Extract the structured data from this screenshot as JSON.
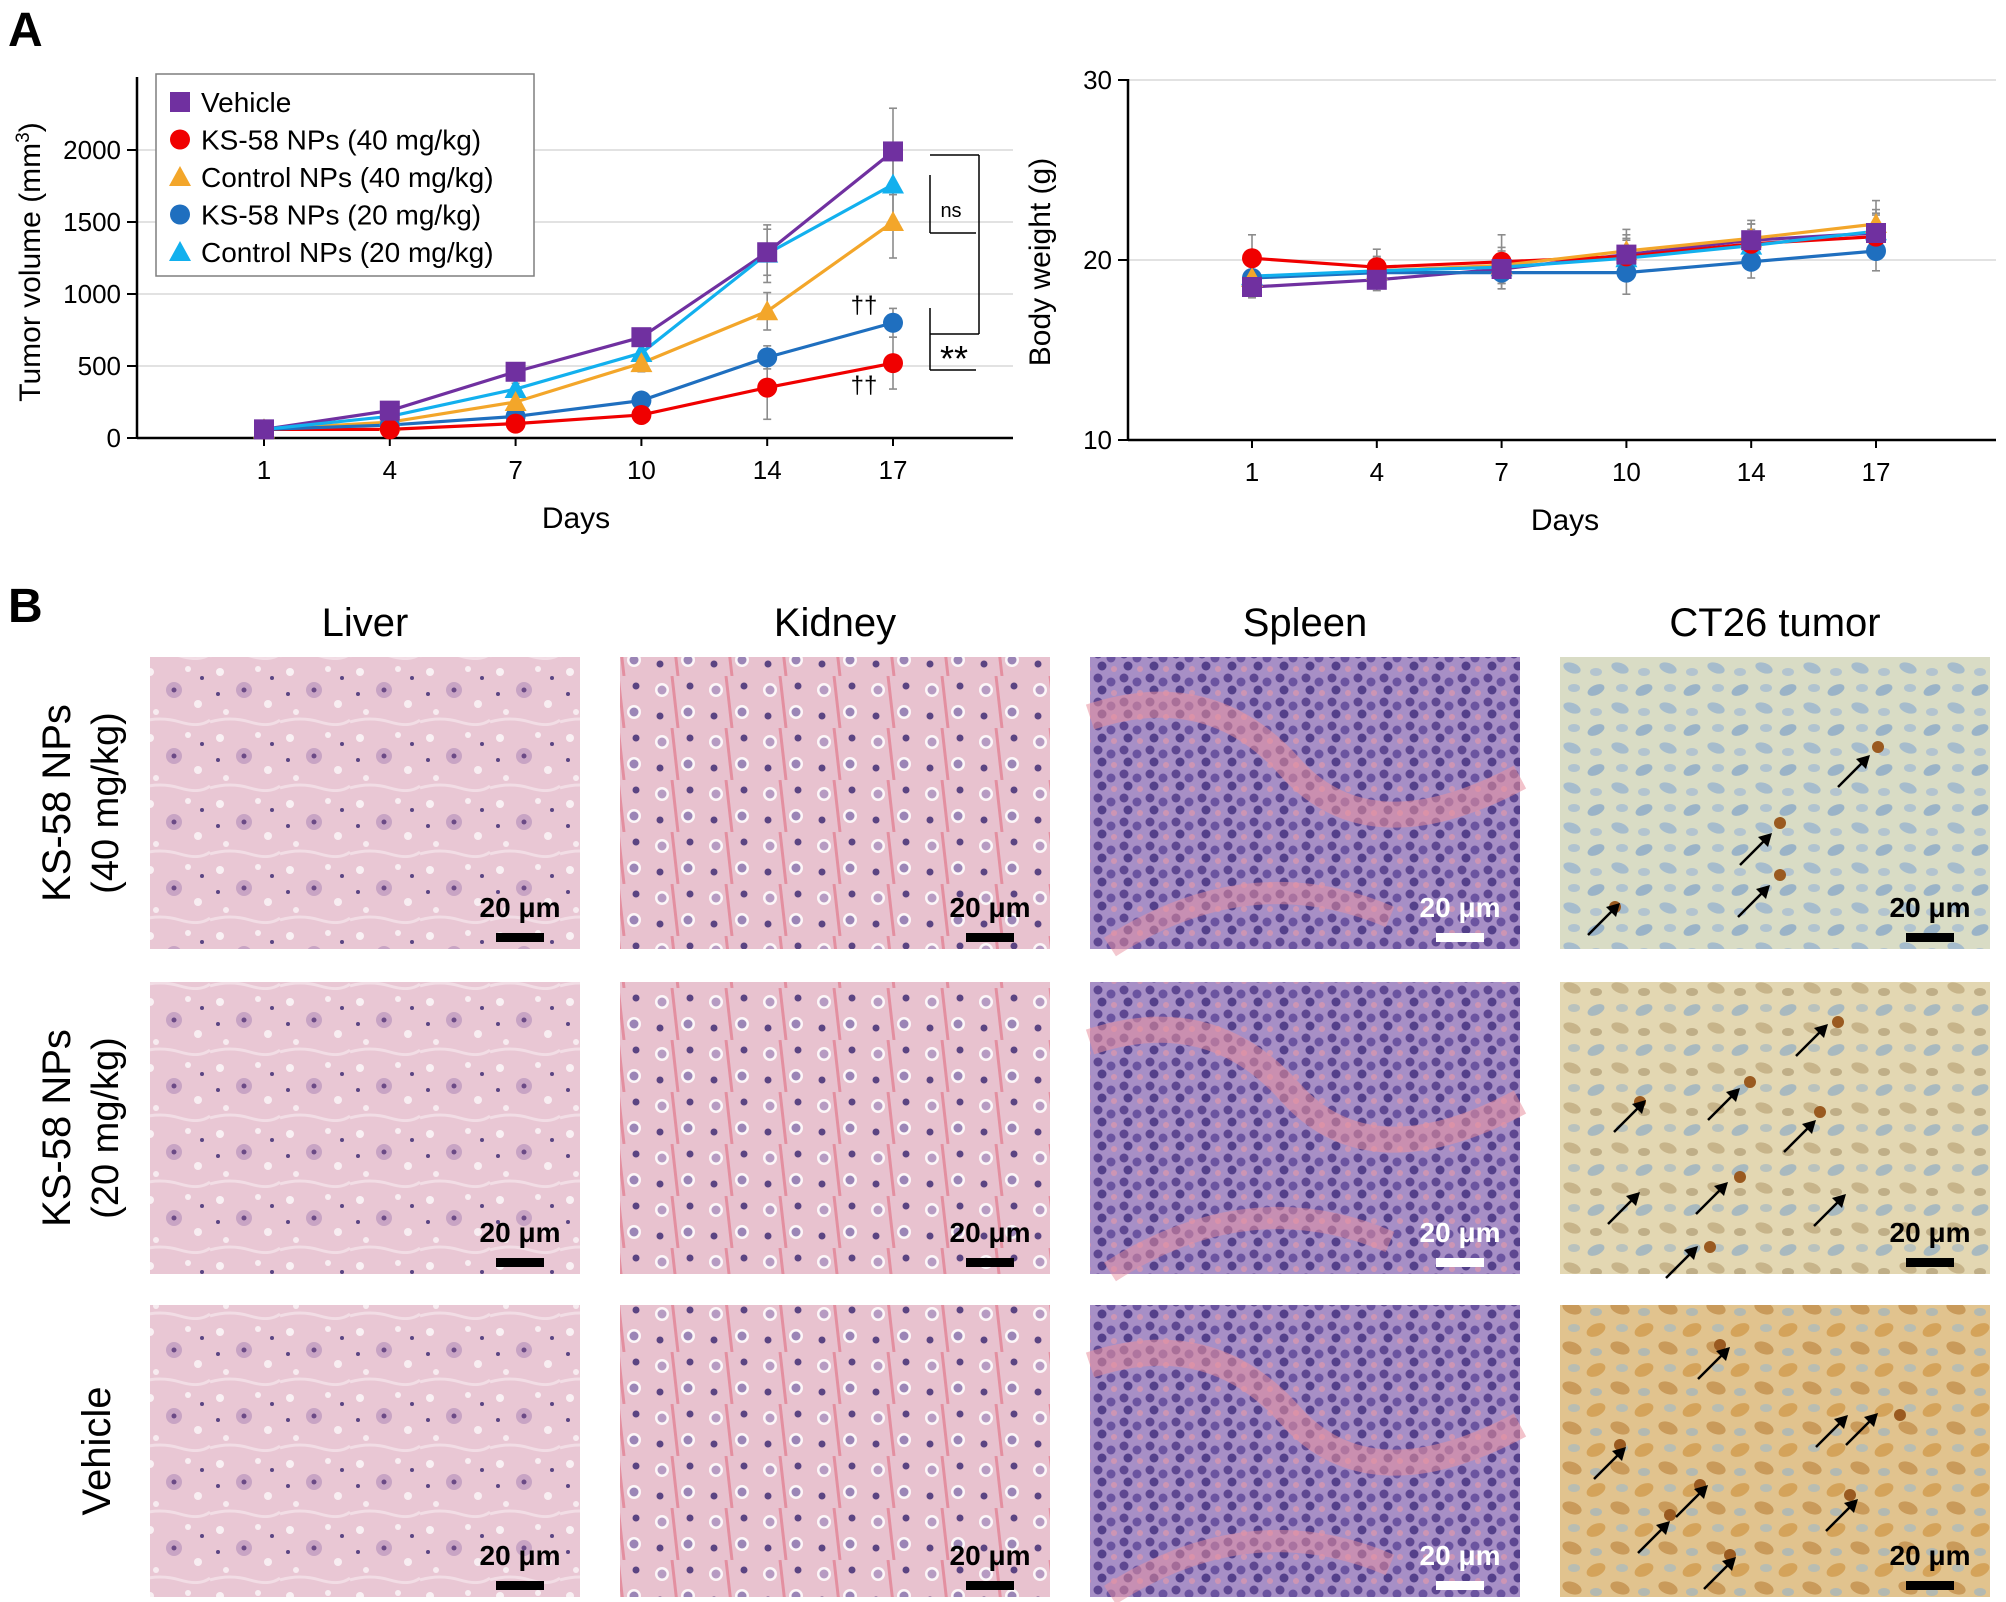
{
  "panels": {
    "a_label": "A",
    "b_label": "B"
  },
  "chart_data": [
    {
      "type": "line",
      "x": [
        "1",
        "4",
        "7",
        "10",
        "14",
        "17"
      ],
      "xlabel": "Days",
      "ylabel": "Tumor volume (mm",
      "ylabel_sup": "3",
      "ylabel_close": ")",
      "ylim": [
        0,
        2500
      ],
      "yticks": [
        "0",
        "500",
        "1000",
        "1500",
        "2000"
      ],
      "grid": "horizontal",
      "legend": "top-left",
      "series": [
        {
          "name": "Vehicle",
          "marker": "square",
          "color": "#7030a0",
          "values": [
            60,
            190,
            460,
            700,
            1290,
            1990
          ],
          "err": [
            10,
            25,
            50,
            60,
            160,
            300
          ]
        },
        {
          "name": "KS-58 NPs (40 mg/kg)",
          "marker": "circle",
          "color": "#f00000",
          "values": [
            60,
            60,
            100,
            160,
            350,
            520
          ],
          "err": [
            10,
            20,
            30,
            40,
            220,
            180
          ]
        },
        {
          "name": "Control NPs (40 mg/kg)",
          "marker": "triangle",
          "color": "#f3a62a",
          "values": [
            60,
            110,
            250,
            520,
            880,
            1500
          ],
          "err": [
            10,
            20,
            40,
            60,
            130,
            250
          ]
        },
        {
          "name": "KS-58 NPs (20 mg/kg)",
          "marker": "circle",
          "color": "#1f6fbf",
          "values": [
            60,
            90,
            150,
            260,
            560,
            800
          ],
          "err": [
            10,
            20,
            30,
            40,
            80,
            100
          ]
        },
        {
          "name": "Control NPs (20 mg/kg)",
          "marker": "triangle",
          "color": "#12b0ee",
          "values": [
            60,
            150,
            340,
            590,
            1280,
            1760
          ],
          "err": [
            10,
            25,
            40,
            60,
            200,
            250
          ]
        }
      ],
      "annotations": {
        "ns": "ns",
        "double_star": "**",
        "dagger_upper": "††",
        "dagger_lower": "††"
      }
    },
    {
      "type": "line",
      "x": [
        "1",
        "4",
        "7",
        "10",
        "14",
        "17"
      ],
      "xlabel": "Days",
      "ylabel": "Body weight (g)",
      "ylim": [
        10,
        30
      ],
      "yticks": [
        "10",
        "20",
        "30"
      ],
      "grid": "horizontal",
      "series": [
        {
          "name": "Vehicle",
          "marker": "square",
          "color": "#7030a0",
          "values": [
            18.5,
            18.9,
            19.5,
            20.3,
            21.1,
            21.5
          ],
          "err": [
            0.6,
            0.6,
            0.8,
            0.9,
            0.9,
            1.1
          ]
        },
        {
          "name": "KS-58 NPs (40 mg/kg)",
          "marker": "circle",
          "color": "#f00000",
          "values": [
            20.1,
            19.6,
            19.9,
            20.2,
            20.9,
            21.3
          ],
          "err": [
            1.3,
            1.0,
            1.5,
            1.2,
            1.1,
            1.2
          ]
        },
        {
          "name": "Control NPs (40 mg/kg)",
          "marker": "triangle",
          "color": "#f3a62a",
          "values": [
            19.0,
            19.4,
            19.7,
            20.5,
            21.2,
            22.0
          ],
          "err": [
            0.8,
            0.8,
            1.0,
            1.2,
            1.0,
            1.3
          ]
        },
        {
          "name": "KS-58 NPs (20 mg/kg)",
          "marker": "circle",
          "color": "#1f6fbf",
          "values": [
            19.0,
            19.3,
            19.3,
            19.3,
            19.9,
            20.5
          ],
          "err": [
            0.7,
            0.8,
            0.9,
            1.2,
            0.9,
            1.1
          ]
        },
        {
          "name": "Control NPs (20 mg/kg)",
          "marker": "triangle",
          "color": "#12b0ee",
          "values": [
            19.1,
            19.4,
            19.6,
            20.1,
            20.8,
            21.6
          ],
          "err": [
            0.8,
            0.7,
            0.9,
            1.0,
            0.9,
            1.2
          ]
        }
      ]
    }
  ],
  "histology": {
    "columns": [
      "Liver",
      "Kidney",
      "Spleen",
      "CT26 tumor"
    ],
    "rows": [
      {
        "label": "KS-58 NPs",
        "sub": "(40 mg/kg)"
      },
      {
        "label": "KS-58 NPs",
        "sub": "(20 mg/kg)"
      },
      {
        "label": "Vehicle",
        "sub": ""
      }
    ],
    "scale_bar": "20 μm",
    "stain_colors": {
      "liver": "#e9c7d4",
      "kidney": "#e8c2cf",
      "spleen": "#a78fc6",
      "tumor_40": "#d9dcc5",
      "tumor_20": "#e3d7b2",
      "tumor_vehicle": "#e1c38e"
    }
  }
}
